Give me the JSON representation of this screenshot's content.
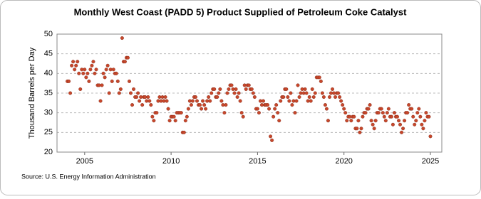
{
  "chart_data": {
    "type": "scatter",
    "title": "Monthly West Coast (PADD 5) Product Supplied of Petroleum Coke Catalyst",
    "y_label": "Thousand Barrels per Day",
    "source": "Source: U.S. Energy Information Administration",
    "xlim": [
      2003.4,
      2025.66
    ],
    "xticks": [
      2005,
      2010,
      2015,
      2020,
      2025
    ],
    "ylim": [
      20,
      50
    ],
    "yticks": [
      20,
      25,
      30,
      35,
      40,
      45,
      50
    ],
    "grid": true,
    "series": [
      {
        "name": "Petroleum Coke Catalyst",
        "color": "#c7472b",
        "x": [
          2004,
          2004.083,
          2004.167,
          2004.25,
          2004.333,
          2004.417,
          2004.5,
          2004.583,
          2004.667,
          2004.75,
          2004.833,
          2004.917,
          2005,
          2005.083,
          2005.167,
          2005.25,
          2005.333,
          2005.417,
          2005.5,
          2005.583,
          2005.667,
          2005.75,
          2005.833,
          2005.917,
          2006,
          2006.083,
          2006.167,
          2006.25,
          2006.333,
          2006.417,
          2006.5,
          2006.583,
          2006.667,
          2006.75,
          2006.833,
          2006.917,
          2007,
          2007.083,
          2007.167,
          2007.25,
          2007.333,
          2007.417,
          2007.5,
          2007.583,
          2007.667,
          2007.75,
          2007.833,
          2007.917,
          2008,
          2008.083,
          2008.167,
          2008.25,
          2008.333,
          2008.417,
          2008.5,
          2008.583,
          2008.667,
          2008.75,
          2008.833,
          2008.917,
          2009,
          2009.083,
          2009.167,
          2009.25,
          2009.333,
          2009.417,
          2009.5,
          2009.583,
          2009.667,
          2009.75,
          2009.833,
          2009.917,
          2010,
          2010.083,
          2010.167,
          2010.25,
          2010.333,
          2010.417,
          2010.5,
          2010.583,
          2010.667,
          2010.75,
          2010.833,
          2010.917,
          2011,
          2011.083,
          2011.167,
          2011.25,
          2011.333,
          2011.417,
          2011.5,
          2011.583,
          2011.667,
          2011.75,
          2011.833,
          2011.917,
          2012,
          2012.083,
          2012.167,
          2012.25,
          2012.333,
          2012.417,
          2012.5,
          2012.583,
          2012.667,
          2012.75,
          2012.833,
          2012.917,
          2013,
          2013.083,
          2013.167,
          2013.25,
          2013.333,
          2013.417,
          2013.5,
          2013.583,
          2013.667,
          2013.75,
          2013.833,
          2013.917,
          2014,
          2014.083,
          2014.167,
          2014.25,
          2014.333,
          2014.417,
          2014.5,
          2014.583,
          2014.667,
          2014.75,
          2014.833,
          2014.917,
          2015,
          2015.083,
          2015.167,
          2015.25,
          2015.333,
          2015.417,
          2015.5,
          2015.583,
          2015.667,
          2015.75,
          2015.833,
          2015.917,
          2016,
          2016.083,
          2016.167,
          2016.25,
          2016.333,
          2016.417,
          2016.5,
          2016.583,
          2016.667,
          2016.75,
          2016.833,
          2016.917,
          2017,
          2017.083,
          2017.167,
          2017.25,
          2017.333,
          2017.417,
          2017.5,
          2017.583,
          2017.667,
          2017.75,
          2017.833,
          2017.917,
          2018,
          2018.083,
          2018.167,
          2018.25,
          2018.333,
          2018.417,
          2018.5,
          2018.583,
          2018.667,
          2018.75,
          2018.833,
          2018.917,
          2019,
          2019.083,
          2019.167,
          2019.25,
          2019.333,
          2019.417,
          2019.5,
          2019.583,
          2019.667,
          2019.75,
          2019.833,
          2019.917,
          2020,
          2020.083,
          2020.167,
          2020.25,
          2020.333,
          2020.417,
          2020.5,
          2020.583,
          2020.667,
          2020.75,
          2020.833,
          2020.917,
          2021,
          2021.083,
          2021.167,
          2021.25,
          2021.333,
          2021.417,
          2021.5,
          2021.583,
          2021.667,
          2021.75,
          2021.833,
          2021.917,
          2022,
          2022.083,
          2022.167,
          2022.25,
          2022.333,
          2022.417,
          2022.5,
          2022.583,
          2022.667,
          2022.75,
          2022.833,
          2022.917,
          2023,
          2023.083,
          2023.167,
          2023.25,
          2023.333,
          2023.417,
          2023.5,
          2023.583,
          2023.667,
          2023.75,
          2023.833,
          2023.917,
          2024,
          2024.083,
          2024.167,
          2024.25,
          2024.333,
          2024.417,
          2024.5,
          2024.583,
          2024.667,
          2024.75,
          2024.833,
          2024.917,
          2025
        ],
        "values": [
          38,
          38,
          35,
          42,
          43,
          41,
          42,
          43,
          40,
          36,
          41,
          40,
          41,
          39,
          40,
          38,
          41,
          42,
          43,
          40,
          41,
          37,
          37,
          33,
          37,
          40,
          39,
          41,
          42,
          35,
          41,
          38,
          41,
          40,
          40,
          38,
          35,
          36,
          49,
          43,
          43,
          44,
          44,
          38,
          35,
          32,
          36,
          34,
          34,
          35,
          33,
          34,
          32,
          34,
          34,
          33,
          34,
          33,
          32,
          29,
          28,
          30,
          30,
          33,
          34,
          33,
          34,
          33,
          34,
          33,
          31,
          28,
          29,
          29,
          29,
          28,
          30,
          30,
          30,
          30,
          25,
          25,
          28,
          29,
          31,
          33,
          32,
          33,
          34,
          34,
          33,
          32,
          32,
          31,
          33,
          32,
          31,
          33,
          34,
          33,
          35,
          36,
          36,
          34,
          34,
          35,
          36,
          33,
          32,
          30,
          32,
          35,
          36,
          37,
          37,
          36,
          35,
          36,
          34,
          35,
          33,
          30,
          29,
          37,
          36,
          37,
          37,
          36,
          36,
          35,
          34,
          31,
          31,
          30,
          33,
          32,
          33,
          32,
          32,
          32,
          31,
          24,
          23,
          29,
          31,
          32,
          30,
          28,
          33,
          34,
          34,
          36,
          36,
          34,
          33,
          35,
          32,
          33,
          30,
          33,
          37,
          34,
          35,
          36,
          35,
          36,
          35,
          33,
          34,
          33,
          36,
          34,
          35,
          39,
          39,
          39,
          38,
          35,
          34,
          32,
          31,
          28,
          34,
          35,
          36,
          35,
          34,
          35,
          35,
          34,
          33,
          32,
          31,
          30,
          28,
          29,
          29,
          28,
          29,
          29,
          26,
          26,
          28,
          25,
          26,
          29,
          30,
          30,
          31,
          31,
          32,
          28,
          27,
          26,
          28,
          30,
          30,
          31,
          31,
          30,
          29,
          28,
          30,
          31,
          29,
          29,
          27,
          30,
          29,
          29,
          28,
          27,
          25,
          26,
          28,
          30,
          30,
          32,
          31,
          31,
          29,
          27,
          28,
          30,
          31,
          29,
          27,
          26,
          28,
          30,
          29,
          29,
          24
        ]
      }
    ]
  }
}
